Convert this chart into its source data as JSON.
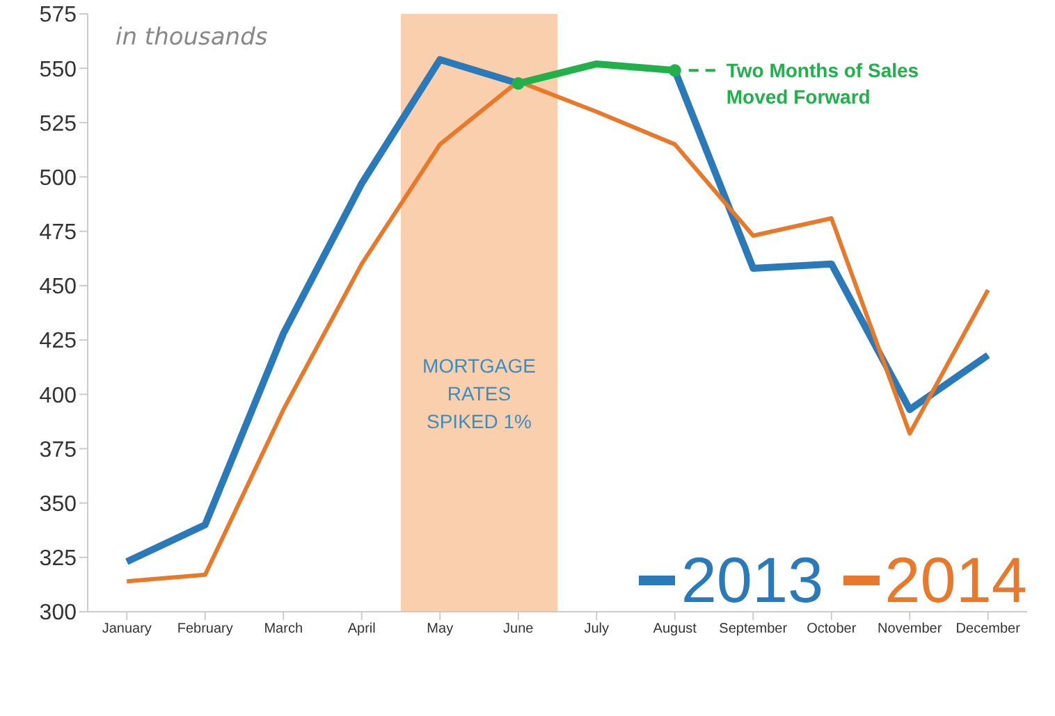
{
  "chart_data": {
    "type": "line",
    "categories": [
      "January",
      "February",
      "March",
      "April",
      "May",
      "June",
      "July",
      "August",
      "September",
      "October",
      "November",
      "December"
    ],
    "series": [
      {
        "name": "2013",
        "color": "#2a7ab9",
        "values": [
          323,
          340,
          428,
          497,
          554,
          543,
          null,
          549,
          458,
          460,
          393,
          418
        ]
      },
      {
        "name": "2014",
        "color": "#e8792a",
        "values": [
          314,
          317,
          393,
          460,
          515,
          544,
          530,
          515,
          473,
          481,
          382,
          448
        ]
      },
      {
        "color": "#22b04b",
        "values": [
          null,
          null,
          null,
          null,
          null,
          543,
          552,
          549,
          null,
          null,
          null,
          null
        ]
      },
      {
        "type": "scatter",
        "color": "#22b04b",
        "x": [
          "June",
          "August"
        ],
        "values": [
          543,
          549
        ],
        "marker": "circle"
      }
    ],
    "ylim": [
      300,
      575
    ],
    "yticks": [
      300,
      325,
      350,
      375,
      400,
      425,
      450,
      475,
      500,
      525,
      550,
      575
    ],
    "bands": [
      {
        "axis": "x",
        "from": "May",
        "to": "June",
        "label": "MORTGAGE\nRATES\nSPIKED 1%",
        "color": "#f9cfae"
      }
    ],
    "annotations": [
      "in thousands",
      {
        "text": "Two Months of Sales\nMoved Forward",
        "x": "August",
        "y": 549
      }
    ],
    "legend": "bottom right",
    "grid": false,
    "marker": "none"
  }
}
